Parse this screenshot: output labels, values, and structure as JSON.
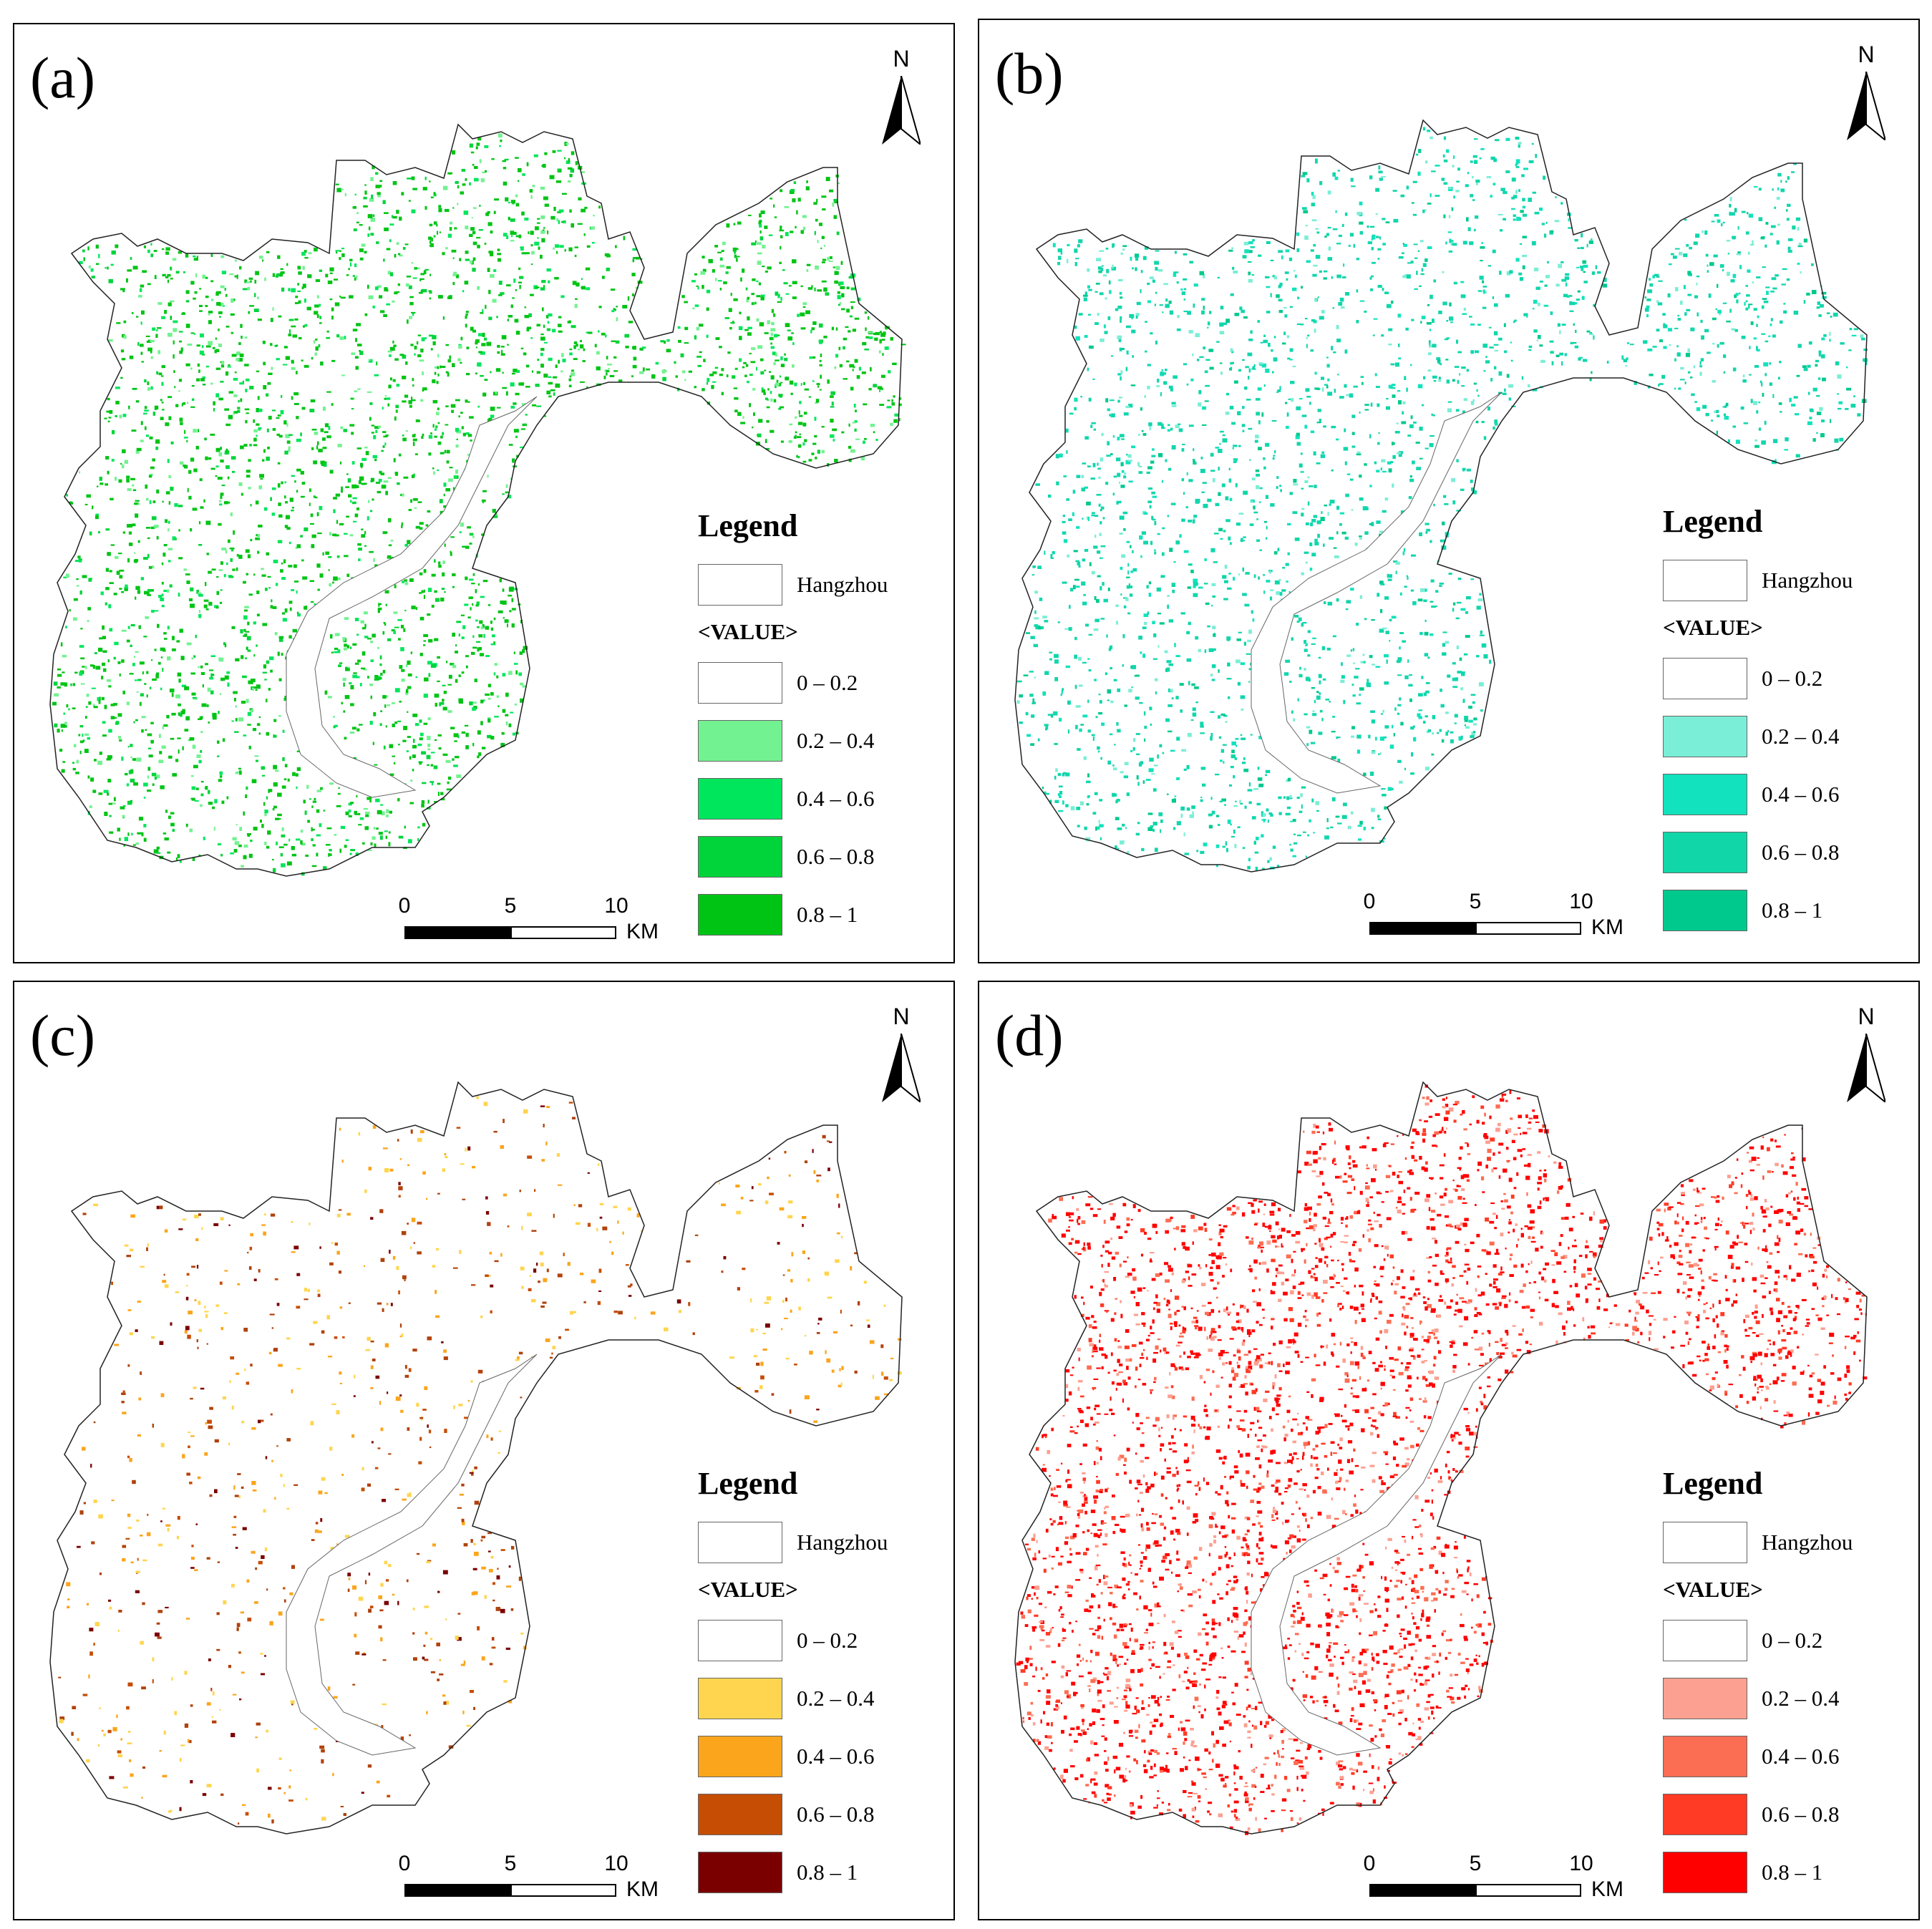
{
  "panels": [
    {
      "id": "a",
      "label": "(a)",
      "north": "N",
      "legend_title": "Legend",
      "boundary_label": "Hangzhou",
      "value_header": "<VALUE>",
      "classes": [
        {
          "label": "0 – 0.2",
          "color": "#ffffff"
        },
        {
          "label": "0.2 – 0.4",
          "color": "#73f291"
        },
        {
          "label": "0.4 – 0.6",
          "color": "#00e65c"
        },
        {
          "label": "0.6 – 0.8",
          "color": "#00d43a"
        },
        {
          "label": "0.8 – 1",
          "color": "#00c414"
        }
      ],
      "map_color": "#00c414",
      "scale": {
        "ticks": [
          "0",
          "5",
          "10"
        ],
        "unit": "KM"
      }
    },
    {
      "id": "b",
      "label": "(b)",
      "north": "N",
      "legend_title": "Legend",
      "boundary_label": "Hangzhou",
      "value_header": "<VALUE>",
      "classes": [
        {
          "label": "0 – 0.2",
          "color": "#ffffff"
        },
        {
          "label": "0.2 – 0.4",
          "color": "#7aeed6"
        },
        {
          "label": "0.4 – 0.6",
          "color": "#12e2bd"
        },
        {
          "label": "0.6 – 0.8",
          "color": "#10d6a8"
        },
        {
          "label": "0.8 – 1",
          "color": "#00c98e"
        }
      ],
      "map_color": "#12d6ad",
      "scale": {
        "ticks": [
          "0",
          "5",
          "10"
        ],
        "unit": "KM"
      }
    },
    {
      "id": "c",
      "label": "(c)",
      "north": "N",
      "legend_title": "Legend",
      "boundary_label": "Hangzhou",
      "value_header": "<VALUE>",
      "classes": [
        {
          "label": "0 – 0.2",
          "color": "#ffffff"
        },
        {
          "label": "0.2 – 0.4",
          "color": "#ffd54f"
        },
        {
          "label": "0.4 – 0.6",
          "color": "#fba51c"
        },
        {
          "label": "0.6 – 0.8",
          "color": "#c64d04"
        },
        {
          "label": "0.8 – 1",
          "color": "#7a0000"
        }
      ],
      "map_color": "#b0420c",
      "scale": {
        "ticks": [
          "0",
          "5",
          "10"
        ],
        "unit": "KM"
      }
    },
    {
      "id": "d",
      "label": "(d)",
      "north": "N",
      "legend_title": "Legend",
      "boundary_label": "Hangzhou",
      "value_header": "<VALUE>",
      "classes": [
        {
          "label": "0 – 0.2",
          "color": "#ffffff"
        },
        {
          "label": "0.2 – 0.4",
          "color": "#fca091"
        },
        {
          "label": "0.4 – 0.6",
          "color": "#fc6e53"
        },
        {
          "label": "0.6 – 0.8",
          "color": "#ff3b26"
        },
        {
          "label": "0.8 – 1",
          "color": "#ff0000"
        }
      ],
      "map_color": "#ff0000",
      "scale": {
        "ticks": [
          "0",
          "5",
          "10"
        ],
        "unit": "KM"
      }
    }
  ]
}
